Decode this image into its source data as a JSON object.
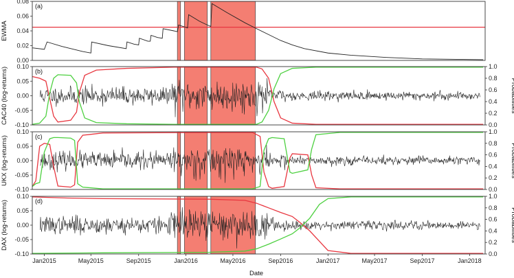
{
  "chart_data": {
    "type": "line",
    "shared_x": {
      "label": "Date",
      "range": [
        "2014-12-01",
        "2018-02-10"
      ],
      "ticks": [
        {
          "date": "2015-01-01",
          "label": "Jan2015"
        },
        {
          "date": "2015-05-01",
          "label": "May2015"
        },
        {
          "date": "2015-09-01",
          "label": "Sep2015"
        },
        {
          "date": "2016-01-01",
          "label": "Jan2016"
        },
        {
          "date": "2016-05-01",
          "label": "May2016"
        },
        {
          "date": "2016-09-01",
          "label": "Sep2016"
        },
        {
          "date": "2017-01-01",
          "label": "Jan2017"
        },
        {
          "date": "2017-05-01",
          "label": "May2017"
        },
        {
          "date": "2017-09-01",
          "label": "Sep2017"
        },
        {
          "date": "2018-01-01",
          "label": "Jan2018"
        }
      ]
    },
    "shaded_periods": [
      {
        "start": "2015-12-10",
        "end": "2015-12-18"
      },
      {
        "start": "2015-12-28",
        "end": "2016-02-25"
      },
      {
        "start": "2016-03-05",
        "end": "2016-06-28"
      }
    ],
    "colors": {
      "shade": "#f47e72",
      "shade_edge": "#555555",
      "series_main": "#222222",
      "prob_red": "#e8363f",
      "prob_green": "#4cd03f",
      "threshold": "#e8363f"
    },
    "panels": [
      {
        "tag": "(a)",
        "ylabel": "EWMA",
        "ylim": [
          0,
          0.08
        ],
        "yticks": [
          {
            "v": 0.0,
            "label": "0.00"
          },
          {
            "v": 0.02,
            "label": "0.02"
          },
          {
            "v": 0.04,
            "label": "0.04"
          },
          {
            "v": 0.06,
            "label": "0.06"
          },
          {
            "v": 0.08,
            "label": "0.08"
          }
        ],
        "threshold": 0.045,
        "ewma": [
          [
            "2014-12-01",
            0.017
          ],
          [
            "2015-01-01",
            0.015
          ],
          [
            "2015-01-08",
            0.025
          ],
          [
            "2015-02-15",
            0.019
          ],
          [
            "2015-04-10",
            0.012
          ],
          [
            "2015-05-01",
            0.01
          ],
          [
            "2015-05-03",
            0.025
          ],
          [
            "2015-06-15",
            0.02
          ],
          [
            "2015-07-31",
            0.016
          ],
          [
            "2015-08-02",
            0.025
          ],
          [
            "2015-08-20",
            0.022
          ],
          [
            "2015-09-01",
            0.021
          ],
          [
            "2015-09-03",
            0.03
          ],
          [
            "2015-09-25",
            0.026
          ],
          [
            "2015-10-01",
            0.026
          ],
          [
            "2015-10-03",
            0.034
          ],
          [
            "2015-10-20",
            0.031
          ],
          [
            "2015-11-01",
            0.03
          ],
          [
            "2015-11-03",
            0.043
          ],
          [
            "2015-12-01",
            0.04
          ],
          [
            "2015-12-10",
            0.039
          ],
          [
            "2015-12-13",
            0.048
          ],
          [
            "2015-12-31",
            0.045
          ],
          [
            "2016-01-05",
            0.044
          ],
          [
            "2016-01-08",
            0.062
          ],
          [
            "2016-02-05",
            0.053
          ],
          [
            "2016-02-25",
            0.048
          ],
          [
            "2016-03-05",
            0.046
          ],
          [
            "2016-03-08",
            0.077
          ],
          [
            "2016-04-15",
            0.065
          ],
          [
            "2016-06-01",
            0.051
          ],
          [
            "2016-07-01",
            0.043
          ],
          [
            "2016-08-01",
            0.035
          ],
          [
            "2016-09-01",
            0.027
          ],
          [
            "2016-10-01",
            0.021
          ],
          [
            "2016-11-01",
            0.016
          ],
          [
            "2017-01-01",
            0.01
          ],
          [
            "2017-03-01",
            0.007
          ],
          [
            "2017-06-01",
            0.004
          ],
          [
            "2017-09-01",
            0.002
          ],
          [
            "2018-02-05",
            0.001
          ]
        ]
      },
      {
        "tag": "(b)",
        "ylabel": "CAC40 (log-returns)",
        "ylabel_right": "Probabilities",
        "ylim": [
          -0.1,
          0.1
        ],
        "yticks": [
          {
            "v": -0.1,
            "label": "-0.10"
          },
          {
            "v": -0.05,
            "label": "-0.05"
          },
          {
            "v": 0.0,
            "label": "0.00"
          },
          {
            "v": 0.05,
            "label": "0.05"
          },
          {
            "v": 0.1,
            "label": "0.10"
          }
        ],
        "prob_ticks": [
          {
            "v": 0.0,
            "label": "0.0"
          },
          {
            "v": 0.2,
            "label": "0.2"
          },
          {
            "v": 0.4,
            "label": "0.4"
          },
          {
            "v": 0.6,
            "label": "0.6"
          },
          {
            "v": 0.8,
            "label": "0.8"
          },
          {
            "v": 1.0,
            "label": "1.0"
          }
        ],
        "return_seed": 11,
        "prob_red": [
          [
            "2014-12-01",
            0.83
          ],
          [
            "2014-12-20",
            0.8
          ],
          [
            "2015-01-05",
            0.75
          ],
          [
            "2015-01-15",
            0.45
          ],
          [
            "2015-01-25",
            0.15
          ],
          [
            "2015-02-05",
            0.05
          ],
          [
            "2015-03-10",
            0.08
          ],
          [
            "2015-03-25",
            0.22
          ],
          [
            "2015-04-01",
            0.55
          ],
          [
            "2015-04-15",
            0.85
          ],
          [
            "2015-05-15",
            0.94
          ],
          [
            "2015-08-01",
            0.97
          ],
          [
            "2015-12-01",
            0.99
          ],
          [
            "2016-07-01",
            0.99
          ],
          [
            "2016-07-15",
            0.96
          ],
          [
            "2016-08-01",
            0.8
          ],
          [
            "2016-08-15",
            0.4
          ],
          [
            "2016-09-01",
            0.12
          ],
          [
            "2016-10-01",
            0.03
          ],
          [
            "2016-12-01",
            0.01
          ],
          [
            "2018-02-05",
            0.01
          ]
        ],
        "prob_green": [
          [
            "2014-12-01",
            0.01
          ],
          [
            "2014-12-20",
            0.03
          ],
          [
            "2015-01-05",
            0.15
          ],
          [
            "2015-01-15",
            0.55
          ],
          [
            "2015-01-25",
            0.8
          ],
          [
            "2015-02-05",
            0.86
          ],
          [
            "2015-03-10",
            0.85
          ],
          [
            "2015-03-25",
            0.72
          ],
          [
            "2015-04-01",
            0.4
          ],
          [
            "2015-04-15",
            0.12
          ],
          [
            "2015-05-15",
            0.04
          ],
          [
            "2015-08-01",
            0.02
          ],
          [
            "2015-12-01",
            0.01
          ],
          [
            "2016-07-01",
            0.01
          ],
          [
            "2016-07-15",
            0.05
          ],
          [
            "2016-08-01",
            0.25
          ],
          [
            "2016-08-15",
            0.62
          ],
          [
            "2016-09-01",
            0.88
          ],
          [
            "2016-10-01",
            0.97
          ],
          [
            "2016-12-01",
            0.99
          ],
          [
            "2018-02-05",
            0.99
          ]
        ]
      },
      {
        "tag": "(c)",
        "ylabel": "UKX (log-returns)",
        "ylabel_right": "Probabilities",
        "ylim": [
          -0.1,
          0.1
        ],
        "yticks": [
          {
            "v": -0.1,
            "label": "-0.10"
          },
          {
            "v": -0.05,
            "label": "-0.05"
          },
          {
            "v": 0.0,
            "label": "0.00"
          },
          {
            "v": 0.05,
            "label": "0.05"
          },
          {
            "v": 0.1,
            "label": "0.10"
          }
        ],
        "prob_ticks": [
          {
            "v": 0.0,
            "label": "0.0"
          },
          {
            "v": 0.2,
            "label": "0.2"
          },
          {
            "v": 0.4,
            "label": "0.4"
          },
          {
            "v": 0.6,
            "label": "0.6"
          },
          {
            "v": 0.8,
            "label": "0.8"
          },
          {
            "v": 1.0,
            "label": "1.0"
          }
        ],
        "return_seed": 23,
        "prob_red": [
          [
            "2014-12-01",
            0.05
          ],
          [
            "2014-12-10",
            0.15
          ],
          [
            "2014-12-20",
            0.75
          ],
          [
            "2015-01-01",
            0.8
          ],
          [
            "2015-01-15",
            0.78
          ],
          [
            "2015-01-25",
            0.4
          ],
          [
            "2015-02-05",
            0.06
          ],
          [
            "2015-03-10",
            0.04
          ],
          [
            "2015-03-20",
            0.08
          ],
          [
            "2015-03-28",
            0.82
          ],
          [
            "2015-04-10",
            0.94
          ],
          [
            "2015-06-01",
            0.98
          ],
          [
            "2016-06-20",
            0.99
          ],
          [
            "2016-07-10",
            0.92
          ],
          [
            "2016-07-20",
            0.3
          ],
          [
            "2016-08-01",
            0.05
          ],
          [
            "2016-08-10",
            0.02
          ],
          [
            "2016-09-10",
            0.05
          ],
          [
            "2016-09-25",
            0.55
          ],
          [
            "2016-10-01",
            0.62
          ],
          [
            "2016-11-10",
            0.6
          ],
          [
            "2016-11-20",
            0.25
          ],
          [
            "2016-12-01",
            0.03
          ],
          [
            "2017-02-01",
            0.01
          ],
          [
            "2018-02-05",
            0.01
          ]
        ],
        "prob_green": [
          [
            "2014-12-01",
            0.05
          ],
          [
            "2014-12-10",
            0.1
          ],
          [
            "2014-12-20",
            0.12
          ],
          [
            "2015-01-01",
            0.65
          ],
          [
            "2015-01-15",
            0.88
          ],
          [
            "2015-01-25",
            0.9
          ],
          [
            "2015-02-05",
            0.9
          ],
          [
            "2015-03-10",
            0.89
          ],
          [
            "2015-03-20",
            0.85
          ],
          [
            "2015-03-28",
            0.1
          ],
          [
            "2015-04-10",
            0.04
          ],
          [
            "2015-06-01",
            0.01
          ],
          [
            "2016-06-20",
            0.01
          ],
          [
            "2016-07-10",
            0.05
          ],
          [
            "2016-07-20",
            0.68
          ],
          [
            "2016-08-01",
            0.88
          ],
          [
            "2016-08-10",
            0.9
          ],
          [
            "2016-09-10",
            0.88
          ],
          [
            "2016-09-25",
            0.3
          ],
          [
            "2016-10-01",
            0.28
          ],
          [
            "2016-11-10",
            0.34
          ],
          [
            "2016-11-20",
            0.7
          ],
          [
            "2016-12-01",
            0.95
          ],
          [
            "2017-02-01",
            0.99
          ],
          [
            "2018-02-05",
            0.99
          ]
        ]
      },
      {
        "tag": "(d)",
        "ylabel": "DAX (log-returns)",
        "ylabel_right": "Probabilities",
        "ylim": [
          -0.1,
          0.1
        ],
        "yticks": [
          {
            "v": -0.1,
            "label": "-0.10"
          },
          {
            "v": -0.05,
            "label": "-0.05"
          },
          {
            "v": 0.0,
            "label": "0.00"
          },
          {
            "v": 0.05,
            "label": "0.05"
          },
          {
            "v": 0.1,
            "label": "0.10"
          }
        ],
        "prob_ticks": [
          {
            "v": 0.0,
            "label": "0.0"
          },
          {
            "v": 0.2,
            "label": "0.2"
          },
          {
            "v": 0.4,
            "label": "0.4"
          },
          {
            "v": 0.6,
            "label": "0.6"
          },
          {
            "v": 0.8,
            "label": "0.8"
          },
          {
            "v": 1.0,
            "label": "1.0"
          }
        ],
        "return_seed": 37,
        "prob_red": [
          [
            "2014-12-01",
            0.99
          ],
          [
            "2015-03-01",
            0.97
          ],
          [
            "2015-06-01",
            0.96
          ],
          [
            "2016-03-01",
            0.95
          ],
          [
            "2016-06-01",
            0.93
          ],
          [
            "2016-07-01",
            0.88
          ],
          [
            "2016-08-01",
            0.8
          ],
          [
            "2016-09-01",
            0.72
          ],
          [
            "2016-10-01",
            0.65
          ],
          [
            "2016-10-20",
            0.55
          ],
          [
            "2016-11-15",
            0.4
          ],
          [
            "2016-12-10",
            0.22
          ],
          [
            "2017-01-01",
            0.06
          ],
          [
            "2017-03-01",
            0.01
          ],
          [
            "2018-02-05",
            0.01
          ]
        ],
        "prob_green": [
          [
            "2014-12-01",
            0.01
          ],
          [
            "2015-06-01",
            0.02
          ],
          [
            "2016-03-01",
            0.03
          ],
          [
            "2016-06-01",
            0.05
          ],
          [
            "2016-07-01",
            0.09
          ],
          [
            "2016-08-01",
            0.17
          ],
          [
            "2016-09-01",
            0.26
          ],
          [
            "2016-10-01",
            0.35
          ],
          [
            "2016-10-20",
            0.45
          ],
          [
            "2016-11-15",
            0.62
          ],
          [
            "2016-12-10",
            0.86
          ],
          [
            "2017-01-01",
            0.96
          ],
          [
            "2017-03-01",
            0.99
          ],
          [
            "2018-02-05",
            0.99
          ]
        ]
      }
    ]
  }
}
